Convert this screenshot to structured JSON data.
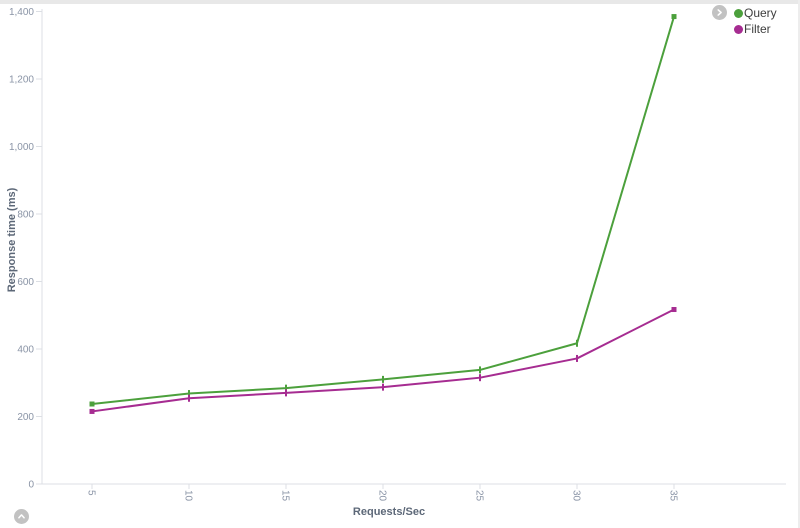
{
  "panel": {
    "background": "#ffffff",
    "top_strip_color": "#e8e8e8",
    "right_strip_color": "#ededed"
  },
  "controls": {
    "legend_toggle_icon": "chevron-right-icon",
    "collapse_icon": "chevron-up-icon",
    "button_color": "#c2c2c2"
  },
  "legend": {
    "position": "top-right",
    "items": [
      {
        "label": "Query",
        "color": "#4ca03c"
      },
      {
        "label": "Filter",
        "color": "#a62c91"
      }
    ]
  },
  "chart_data": {
    "type": "line",
    "title": "",
    "xlabel": "Requests/Sec",
    "ylabel": "Response time (ms)",
    "x": [
      5,
      10,
      15,
      20,
      25,
      30,
      35
    ],
    "series": [
      {
        "name": "Query",
        "color": "#4ca03c",
        "values": [
          237,
          268,
          284,
          310,
          338,
          417,
          1385
        ]
      },
      {
        "name": "Filter",
        "color": "#a62c91",
        "values": [
          215,
          254,
          270,
          287,
          315,
          372,
          517
        ]
      }
    ],
    "xlim": [
      5,
      35
    ],
    "ylim": [
      0,
      1400
    ],
    "xticks": [
      5,
      10,
      15,
      20,
      25,
      30,
      35
    ],
    "xtick_labels": [
      "5",
      "10",
      "15",
      "20",
      "25",
      "30",
      "35"
    ],
    "yticks": [
      0,
      200,
      400,
      600,
      800,
      1000,
      1200,
      1400
    ],
    "ytick_labels": [
      "0",
      "200",
      "400",
      "600",
      "800",
      "1,000",
      "1,200",
      "1,400"
    ],
    "x_tick_rotation": 90,
    "grid": false,
    "legend_position": "top-right",
    "style": {
      "axis_color": "#dcdfe4",
      "tick_label_color": "#8a94a6",
      "axis_title_color": "#5d6878",
      "line_width": 2
    }
  }
}
